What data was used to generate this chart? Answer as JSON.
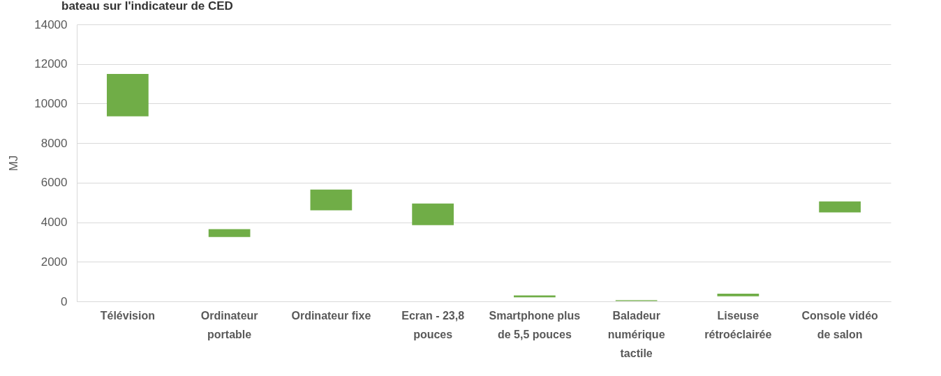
{
  "chart_data": {
    "type": "bar",
    "title": "bateau sur l'indicateur de CED",
    "ylabel": "MJ",
    "categories": [
      "Télévision",
      "Ordinateur portable",
      "Ordinateur fixe",
      "Ecran - 23,8 pouces",
      "Smartphone plus de 5,5 pouces",
      "Baladeur numérique tactile",
      "Liseuse rétroéclairée",
      "Console vidéo de salon"
    ],
    "base": [
      9350,
      3250,
      4600,
      3850,
      200,
      20,
      260,
      4500
    ],
    "values": [
      2150,
      400,
      1050,
      1100,
      100,
      40,
      130,
      550
    ],
    "color": "#70ad47",
    "ylim": [
      0,
      14000
    ],
    "yticks": [
      0,
      2000,
      4000,
      6000,
      8000,
      10000,
      12000,
      14000
    ],
    "grid": "y"
  }
}
